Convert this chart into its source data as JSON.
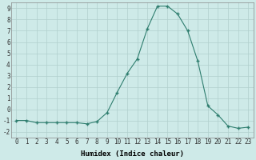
{
  "x": [
    0,
    1,
    2,
    3,
    4,
    5,
    6,
    7,
    8,
    9,
    10,
    11,
    12,
    13,
    14,
    15,
    16,
    17,
    18,
    19,
    20,
    21,
    22,
    23
  ],
  "y": [
    -1,
    -1,
    -1.2,
    -1.2,
    -1.2,
    -1.2,
    -1.2,
    -1.3,
    -1.1,
    -0.3,
    1.5,
    3.2,
    4.5,
    7.2,
    9.2,
    9.2,
    8.5,
    7.0,
    4.3,
    0.3,
    -0.5,
    -1.5,
    -1.7,
    -1.6
  ],
  "line_color": "#2e7d6e",
  "marker": "+",
  "markersize": 3.5,
  "linewidth": 0.8,
  "bg_color": "#ceeae8",
  "grid_color": "#b0d0cc",
  "xlabel": "Humidex (Indice chaleur)",
  "xlim": [
    -0.5,
    23.5
  ],
  "ylim": [
    -2.5,
    9.5
  ],
  "xticks": [
    0,
    1,
    2,
    3,
    4,
    5,
    6,
    7,
    8,
    9,
    10,
    11,
    12,
    13,
    14,
    15,
    16,
    17,
    18,
    19,
    20,
    21,
    22,
    23
  ],
  "yticks": [
    -2,
    -1,
    0,
    1,
    2,
    3,
    4,
    5,
    6,
    7,
    8,
    9
  ],
  "tick_fontsize": 5.5,
  "xlabel_fontsize": 6.5
}
